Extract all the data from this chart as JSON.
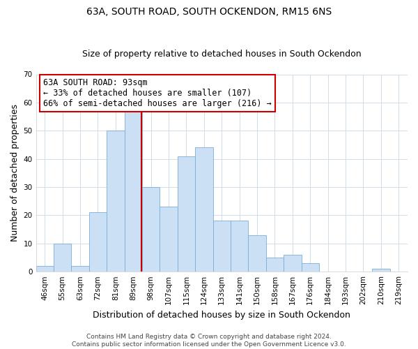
{
  "title1": "63A, SOUTH ROAD, SOUTH OCKENDON, RM15 6NS",
  "title2": "Size of property relative to detached houses in South Ockendon",
  "xlabel": "Distribution of detached houses by size in South Ockendon",
  "ylabel": "Number of detached properties",
  "bar_labels": [
    "46sqm",
    "55sqm",
    "63sqm",
    "72sqm",
    "81sqm",
    "89sqm",
    "98sqm",
    "107sqm",
    "115sqm",
    "124sqm",
    "133sqm",
    "141sqm",
    "150sqm",
    "158sqm",
    "167sqm",
    "176sqm",
    "184sqm",
    "193sqm",
    "202sqm",
    "210sqm",
    "219sqm"
  ],
  "bar_values": [
    2,
    10,
    2,
    21,
    50,
    58,
    30,
    23,
    41,
    44,
    18,
    18,
    13,
    5,
    6,
    3,
    0,
    0,
    0,
    1,
    0
  ],
  "ylim": [
    0,
    70
  ],
  "yticks": [
    0,
    10,
    20,
    30,
    40,
    50,
    60,
    70
  ],
  "bar_color": "#cce0f5",
  "bar_edge_color": "#7aaed6",
  "grid_color": "#d0dce8",
  "vline_index": 5.55,
  "vline_color": "#cc0000",
  "annotation_title": "63A SOUTH ROAD: 93sqm",
  "annotation_line1": "← 33% of detached houses are smaller (107)",
  "annotation_line2": "66% of semi-detached houses are larger (216) →",
  "annotation_box_color": "#ffffff",
  "annotation_box_edge": "#cc0000",
  "footer1": "Contains HM Land Registry data © Crown copyright and database right 2024.",
  "footer2": "Contains public sector information licensed under the Open Government Licence v3.0.",
  "title1_fontsize": 10,
  "title2_fontsize": 9,
  "axis_label_fontsize": 9,
  "tick_fontsize": 7.5,
  "annotation_fontsize": 8.5,
  "footer_fontsize": 6.5,
  "bg_color": "#ffffff"
}
